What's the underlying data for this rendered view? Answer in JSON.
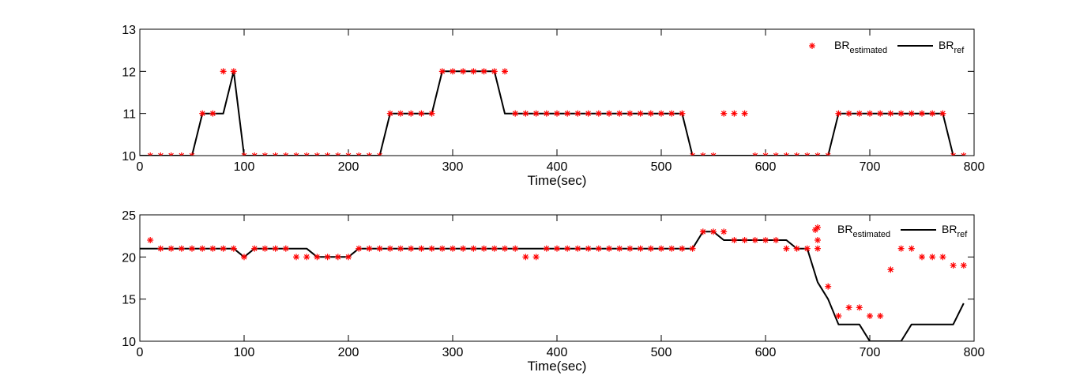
{
  "chart_data": [
    {
      "type": "line",
      "xlabel": "Time(sec)",
      "ylabel": "",
      "xlim": [
        0,
        800
      ],
      "ylim": [
        10,
        13
      ],
      "xticks": [
        0,
        100,
        200,
        300,
        400,
        500,
        600,
        700,
        800
      ],
      "yticks": [
        10,
        11,
        12,
        13
      ],
      "grid": false,
      "legend_position": "top-right",
      "legend": [
        {
          "base": "BR",
          "sub": "estimated",
          "marker": "star",
          "color": "#ff0000"
        },
        {
          "base": "BR",
          "sub": "ref",
          "marker": "line",
          "color": "#000000"
        }
      ],
      "series": [
        {
          "name": "BR_estimated",
          "style": "markers",
          "color": "#ff0000",
          "x": [
            10,
            20,
            30,
            40,
            50,
            60,
            70,
            80,
            90,
            100,
            110,
            120,
            130,
            140,
            150,
            160,
            170,
            180,
            190,
            200,
            210,
            220,
            230,
            240,
            250,
            260,
            270,
            280,
            290,
            300,
            310,
            320,
            330,
            340,
            350,
            360,
            370,
            380,
            390,
            400,
            410,
            420,
            430,
            440,
            450,
            460,
            470,
            480,
            490,
            500,
            510,
            520,
            530,
            540,
            550,
            560,
            570,
            580,
            590,
            600,
            610,
            620,
            630,
            640,
            650,
            660,
            670,
            680,
            690,
            700,
            710,
            720,
            730,
            740,
            750,
            760,
            770,
            780,
            790
          ],
          "y": [
            10,
            10,
            10,
            10,
            10,
            11,
            11,
            12,
            12,
            10,
            10,
            10,
            10,
            10,
            10,
            10,
            10,
            10,
            10,
            10,
            10,
            10,
            10,
            11,
            11,
            11,
            11,
            11,
            12,
            12,
            12,
            12,
            12,
            12,
            12,
            11,
            11,
            11,
            11,
            11,
            11,
            11,
            11,
            11,
            11,
            11,
            11,
            11,
            11,
            11,
            11,
            11,
            10,
            10,
            10,
            11,
            11,
            11,
            10,
            10,
            10,
            10,
            10,
            10,
            10,
            10,
            11,
            11,
            11,
            11,
            11,
            11,
            11,
            11,
            11,
            11,
            11,
            10,
            10
          ]
        },
        {
          "name": "BR_ref",
          "style": "line",
          "color": "#000000",
          "x": [
            0,
            50,
            60,
            80,
            90,
            100,
            130,
            200,
            230,
            240,
            280,
            290,
            340,
            350,
            520,
            530,
            660,
            670,
            770,
            780,
            790
          ],
          "y": [
            10,
            10,
            11,
            11,
            12,
            10,
            10,
            10,
            10,
            11,
            11,
            12,
            12,
            11,
            11,
            10,
            10,
            11,
            11,
            10,
            10
          ]
        }
      ]
    },
    {
      "type": "line",
      "xlabel": "Time(sec)",
      "ylabel": "",
      "xlim": [
        0,
        800
      ],
      "ylim": [
        10,
        25
      ],
      "xticks": [
        0,
        100,
        200,
        300,
        400,
        500,
        600,
        700,
        800
      ],
      "yticks": [
        10,
        15,
        20,
        25
      ],
      "grid": false,
      "legend_position": "top-right",
      "legend": [
        {
          "base": "BR",
          "sub": "estimated",
          "marker": "star",
          "color": "#ff0000"
        },
        {
          "base": "BR",
          "sub": "ref",
          "marker": "line",
          "color": "#000000"
        }
      ],
      "series": [
        {
          "name": "BR_estimated",
          "style": "markers",
          "color": "#ff0000",
          "x": [
            10,
            20,
            30,
            40,
            50,
            60,
            70,
            80,
            90,
            100,
            110,
            120,
            130,
            140,
            150,
            160,
            170,
            180,
            190,
            200,
            210,
            220,
            230,
            240,
            250,
            260,
            270,
            280,
            290,
            300,
            310,
            320,
            330,
            340,
            350,
            360,
            370,
            380,
            390,
            400,
            410,
            420,
            430,
            440,
            450,
            460,
            470,
            480,
            490,
            500,
            510,
            520,
            530,
            540,
            550,
            560,
            570,
            580,
            590,
            600,
            610,
            620,
            630,
            640,
            650,
            650,
            650,
            660,
            670,
            680,
            690,
            700,
            710,
            720,
            730,
            740,
            750,
            760,
            770,
            780,
            790
          ],
          "y": [
            22,
            21,
            21,
            21,
            21,
            21,
            21,
            21,
            21,
            20,
            21,
            21,
            21,
            21,
            20,
            20,
            20,
            20,
            20,
            20,
            21,
            21,
            21,
            21,
            21,
            21,
            21,
            21,
            21,
            21,
            21,
            21,
            21,
            21,
            21,
            21,
            20,
            20,
            21,
            21,
            21,
            21,
            21,
            21,
            21,
            21,
            21,
            21,
            21,
            21,
            21,
            21,
            21,
            23,
            23,
            23,
            22,
            22,
            22,
            22,
            22,
            21,
            21,
            21,
            22,
            23.5,
            21,
            16.5,
            13,
            14,
            14,
            13,
            13,
            18.5,
            21,
            21,
            20,
            20,
            20,
            19,
            19
          ]
        },
        {
          "name": "BR_ref",
          "style": "line",
          "color": "#000000",
          "x": [
            0,
            90,
            100,
            110,
            160,
            170,
            200,
            210,
            530,
            540,
            550,
            560,
            610,
            620,
            630,
            640,
            650,
            660,
            670,
            690,
            700,
            730,
            740,
            780,
            790
          ],
          "y": [
            21,
            21,
            20,
            21,
            21,
            20,
            20,
            21,
            21,
            23,
            23,
            22,
            22,
            22,
            21,
            21,
            17,
            15,
            12,
            12,
            10,
            10,
            12,
            12,
            14.5
          ]
        }
      ]
    }
  ]
}
